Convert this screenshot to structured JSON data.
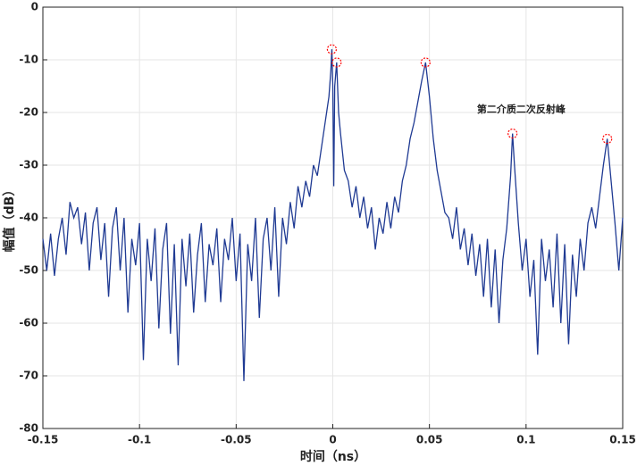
{
  "chart_data": {
    "type": "line",
    "xlabel": "时间（ns）",
    "ylabel": "幅值（dB）",
    "xlim": [
      -0.15,
      0.15
    ],
    "xticks": [
      -0.15,
      -0.1,
      -0.05,
      0,
      0.05,
      0.1,
      0.15
    ],
    "ylim": [
      -80,
      0
    ],
    "yticks": [
      -80,
      -70,
      -60,
      -50,
      -40,
      -30,
      -20,
      -10,
      0
    ],
    "grid": true,
    "x": [
      -0.15,
      -0.148,
      -0.146,
      -0.144,
      -0.142,
      -0.14,
      -0.138,
      -0.136,
      -0.134,
      -0.132,
      -0.13,
      -0.128,
      -0.126,
      -0.124,
      -0.122,
      -0.12,
      -0.118,
      -0.116,
      -0.114,
      -0.112,
      -0.11,
      -0.108,
      -0.106,
      -0.104,
      -0.102,
      -0.1,
      -0.098,
      -0.096,
      -0.094,
      -0.092,
      -0.09,
      -0.088,
      -0.086,
      -0.084,
      -0.082,
      -0.08,
      -0.078,
      -0.076,
      -0.074,
      -0.072,
      -0.07,
      -0.068,
      -0.066,
      -0.064,
      -0.062,
      -0.06,
      -0.058,
      -0.056,
      -0.054,
      -0.052,
      -0.05,
      -0.048,
      -0.046,
      -0.044,
      -0.042,
      -0.04,
      -0.038,
      -0.036,
      -0.034,
      -0.032,
      -0.03,
      -0.028,
      -0.026,
      -0.024,
      -0.022,
      -0.02,
      -0.018,
      -0.016,
      -0.014,
      -0.012,
      -0.01,
      -0.008,
      -0.006,
      -0.004,
      -0.002,
      -0.001,
      -0.0005,
      0.0,
      0.0005,
      0.001,
      0.002,
      0.003,
      0.004,
      0.006,
      0.008,
      0.01,
      0.012,
      0.014,
      0.016,
      0.018,
      0.02,
      0.022,
      0.024,
      0.026,
      0.028,
      0.03,
      0.032,
      0.034,
      0.036,
      0.038,
      0.04,
      0.042,
      0.044,
      0.046,
      0.048,
      0.05,
      0.052,
      0.054,
      0.056,
      0.058,
      0.06,
      0.062,
      0.064,
      0.066,
      0.068,
      0.07,
      0.072,
      0.074,
      0.076,
      0.078,
      0.08,
      0.082,
      0.084,
      0.086,
      0.088,
      0.09,
      0.092,
      0.093,
      0.094,
      0.096,
      0.098,
      0.1,
      0.102,
      0.104,
      0.106,
      0.108,
      0.11,
      0.112,
      0.114,
      0.116,
      0.118,
      0.12,
      0.122,
      0.124,
      0.126,
      0.128,
      0.13,
      0.132,
      0.134,
      0.136,
      0.138,
      0.14,
      0.142,
      0.144,
      0.146,
      0.148,
      0.15
    ],
    "series": [
      {
        "color": "#1f3a93",
        "values": [
          -44,
          -50,
          -43,
          -51,
          -44,
          -40,
          -47,
          -37,
          -40,
          -38,
          -45,
          -39,
          -50,
          -41,
          -38,
          -48,
          -41,
          -55,
          -42,
          -38,
          -50,
          -40,
          -58,
          -44,
          -49,
          -41,
          -67,
          -44,
          -52,
          -42,
          -61,
          -46,
          -41,
          -62,
          -45,
          -68,
          -44,
          -53,
          -43,
          -58,
          -47,
          -41,
          -56,
          -45,
          -49,
          -42,
          -56,
          -44,
          -48,
          -40,
          -52,
          -43,
          -71,
          -45,
          -52,
          -40,
          -59,
          -44,
          -40,
          -50,
          -38,
          -55,
          -40,
          -45,
          -37,
          -42,
          -34,
          -38,
          -33,
          -36,
          -30,
          -32,
          -27,
          -22,
          -17,
          -12,
          -8,
          -15,
          -34,
          -15,
          -10.5,
          -20,
          -24,
          -31,
          -33,
          -38,
          -34,
          -40,
          -36,
          -42,
          -38,
          -46,
          -40,
          -43,
          -37,
          -42,
          -36,
          -39,
          -33,
          -30,
          -25,
          -22,
          -18,
          -14,
          -10.5,
          -17,
          -25,
          -31,
          -35,
          -39,
          -40,
          -44,
          -38,
          -46,
          -42,
          -49,
          -43,
          -51,
          -45,
          -55,
          -44,
          -57,
          -46,
          -60,
          -48,
          -42,
          -32,
          -24,
          -30,
          -41,
          -50,
          -44,
          -55,
          -48,
          -66,
          -44,
          -52,
          -46,
          -57,
          -43,
          -60,
          -45,
          -64,
          -47,
          -55,
          -44,
          -50,
          -41,
          -38,
          -42,
          -36,
          -30,
          -25,
          -33,
          -41,
          -50,
          -40
        ]
      }
    ],
    "markers": {
      "color": "#ff0000",
      "x": [
        -0.0005,
        0.002,
        0.048,
        0.093,
        0.142
      ],
      "y": [
        -8,
        -10.5,
        -10.5,
        -24,
        -25
      ]
    },
    "annotation": {
      "text": "第二介质二次反射峰",
      "x": 0.0975,
      "y": -19.5
    }
  }
}
